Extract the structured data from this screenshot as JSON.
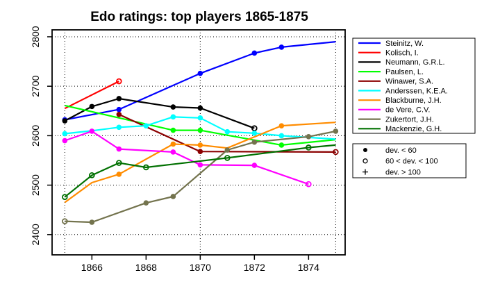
{
  "page": {
    "background": "#FFFFFF"
  },
  "chart_data": {
    "type": "line",
    "title": "Edo ratings: top players 1865-1875",
    "xlabel": "",
    "ylabel": "",
    "xlim": [
      1864.53,
      1875.35
    ],
    "ylim": [
      2359,
      2814
    ],
    "x_ticks": [
      1866,
      1868,
      1870,
      1872,
      1874
    ],
    "y_ticks": [
      2400,
      2500,
      2600,
      2700,
      2800
    ],
    "x_gridlines": [
      1865,
      1870,
      1875
    ],
    "grid_style": "dotted",
    "legend_position": "right",
    "marker_size_meaning": "measurement deviation",
    "series": [
      {
        "name": "Steinitz, W.",
        "color": "#0000FF",
        "data": [
          [
            1865,
            2632,
            "f"
          ],
          [
            1867,
            2653,
            "f"
          ],
          [
            1870,
            2726,
            "f"
          ],
          [
            1872,
            2767,
            "f"
          ],
          [
            1873,
            2779,
            "f"
          ],
          [
            1875,
            2790,
            ""
          ]
        ]
      },
      {
        "name": "Kolisch, I.",
        "color": "#FF0000",
        "data": [
          [
            1865,
            2655,
            ""
          ],
          [
            1867,
            2710,
            "o"
          ]
        ]
      },
      {
        "name": "Neumann, G.R.L.",
        "color": "#000000",
        "data": [
          [
            1865,
            2630,
            "f"
          ],
          [
            1866,
            2659,
            "f"
          ],
          [
            1867,
            2675,
            "f"
          ],
          [
            1869,
            2658,
            "f"
          ],
          [
            1870,
            2656,
            "f"
          ],
          [
            1872,
            2615,
            "o"
          ]
        ]
      },
      {
        "name": "Paulsen, L.",
        "color": "#00FF00",
        "data": [
          [
            1865,
            2661,
            ""
          ],
          [
            1869,
            2611,
            "f"
          ],
          [
            1870,
            2611,
            "f"
          ],
          [
            1873,
            2581,
            "f"
          ],
          [
            1875,
            2592,
            ""
          ]
        ]
      },
      {
        "name": "Winawer, S.A.",
        "color": "#8B0000",
        "data": [
          [
            1867,
            2643,
            "f"
          ],
          [
            1870,
            2568,
            "f"
          ],
          [
            1875,
            2567,
            "o"
          ]
        ]
      },
      {
        "name": "Anderssen, K.E.A.",
        "color": "#00FFFF",
        "data": [
          [
            1865,
            2604,
            "f"
          ],
          [
            1866,
            2610,
            ""
          ],
          [
            1867,
            2617,
            "f"
          ],
          [
            1868,
            2620,
            "f"
          ],
          [
            1869,
            2638,
            "f"
          ],
          [
            1870,
            2636,
            "f"
          ],
          [
            1871,
            2608,
            "f"
          ],
          [
            1872,
            2605,
            "f"
          ],
          [
            1873,
            2600,
            "f"
          ],
          [
            1875,
            2593,
            ""
          ]
        ]
      },
      {
        "name": "Blackburne, J.H.",
        "color": "#FF8C00",
        "data": [
          [
            1865,
            2465,
            ""
          ],
          [
            1866,
            2505,
            ""
          ],
          [
            1867,
            2522,
            "f"
          ],
          [
            1869,
            2583,
            "f"
          ],
          [
            1870,
            2581,
            "f"
          ],
          [
            1871,
            2575,
            ""
          ],
          [
            1873,
            2620,
            "f"
          ],
          [
            1875,
            2627,
            ""
          ]
        ]
      },
      {
        "name": "de Vere, C.V.",
        "color": "#FF00FF",
        "data": [
          [
            1865,
            2590,
            "f"
          ],
          [
            1866,
            2609,
            "f"
          ],
          [
            1867,
            2573,
            "f"
          ],
          [
            1869,
            2567,
            "f"
          ],
          [
            1870,
            2541,
            "f"
          ],
          [
            1872,
            2540,
            "f"
          ],
          [
            1874,
            2502,
            "o"
          ]
        ]
      },
      {
        "name": "Zukertort, J.H.",
        "color": "#73734D",
        "data": [
          [
            1865,
            2427,
            "o"
          ],
          [
            1866,
            2425,
            "f"
          ],
          [
            1868,
            2464,
            "f"
          ],
          [
            1869,
            2477,
            "f"
          ],
          [
            1871,
            2571,
            "f"
          ],
          [
            1872,
            2587,
            "f"
          ],
          [
            1874,
            2598,
            "f"
          ],
          [
            1875,
            2609,
            "f"
          ]
        ]
      },
      {
        "name": "Mackenzie, G.H.",
        "color": "#007000",
        "data": [
          [
            1865,
            2476,
            "o"
          ],
          [
            1866,
            2520,
            "o"
          ],
          [
            1867,
            2545,
            "o"
          ],
          [
            1868,
            2536,
            "o"
          ],
          [
            1871,
            2555,
            "o"
          ],
          [
            1874,
            2576,
            "o"
          ],
          [
            1875,
            2581,
            ""
          ]
        ]
      }
    ],
    "marker_legend": [
      {
        "symbol": "filled-circle",
        "label": "dev. < 60"
      },
      {
        "symbol": "open-circle",
        "label": "60 < dev. < 100"
      },
      {
        "symbol": "plus",
        "label": "dev. > 100"
      }
    ]
  }
}
